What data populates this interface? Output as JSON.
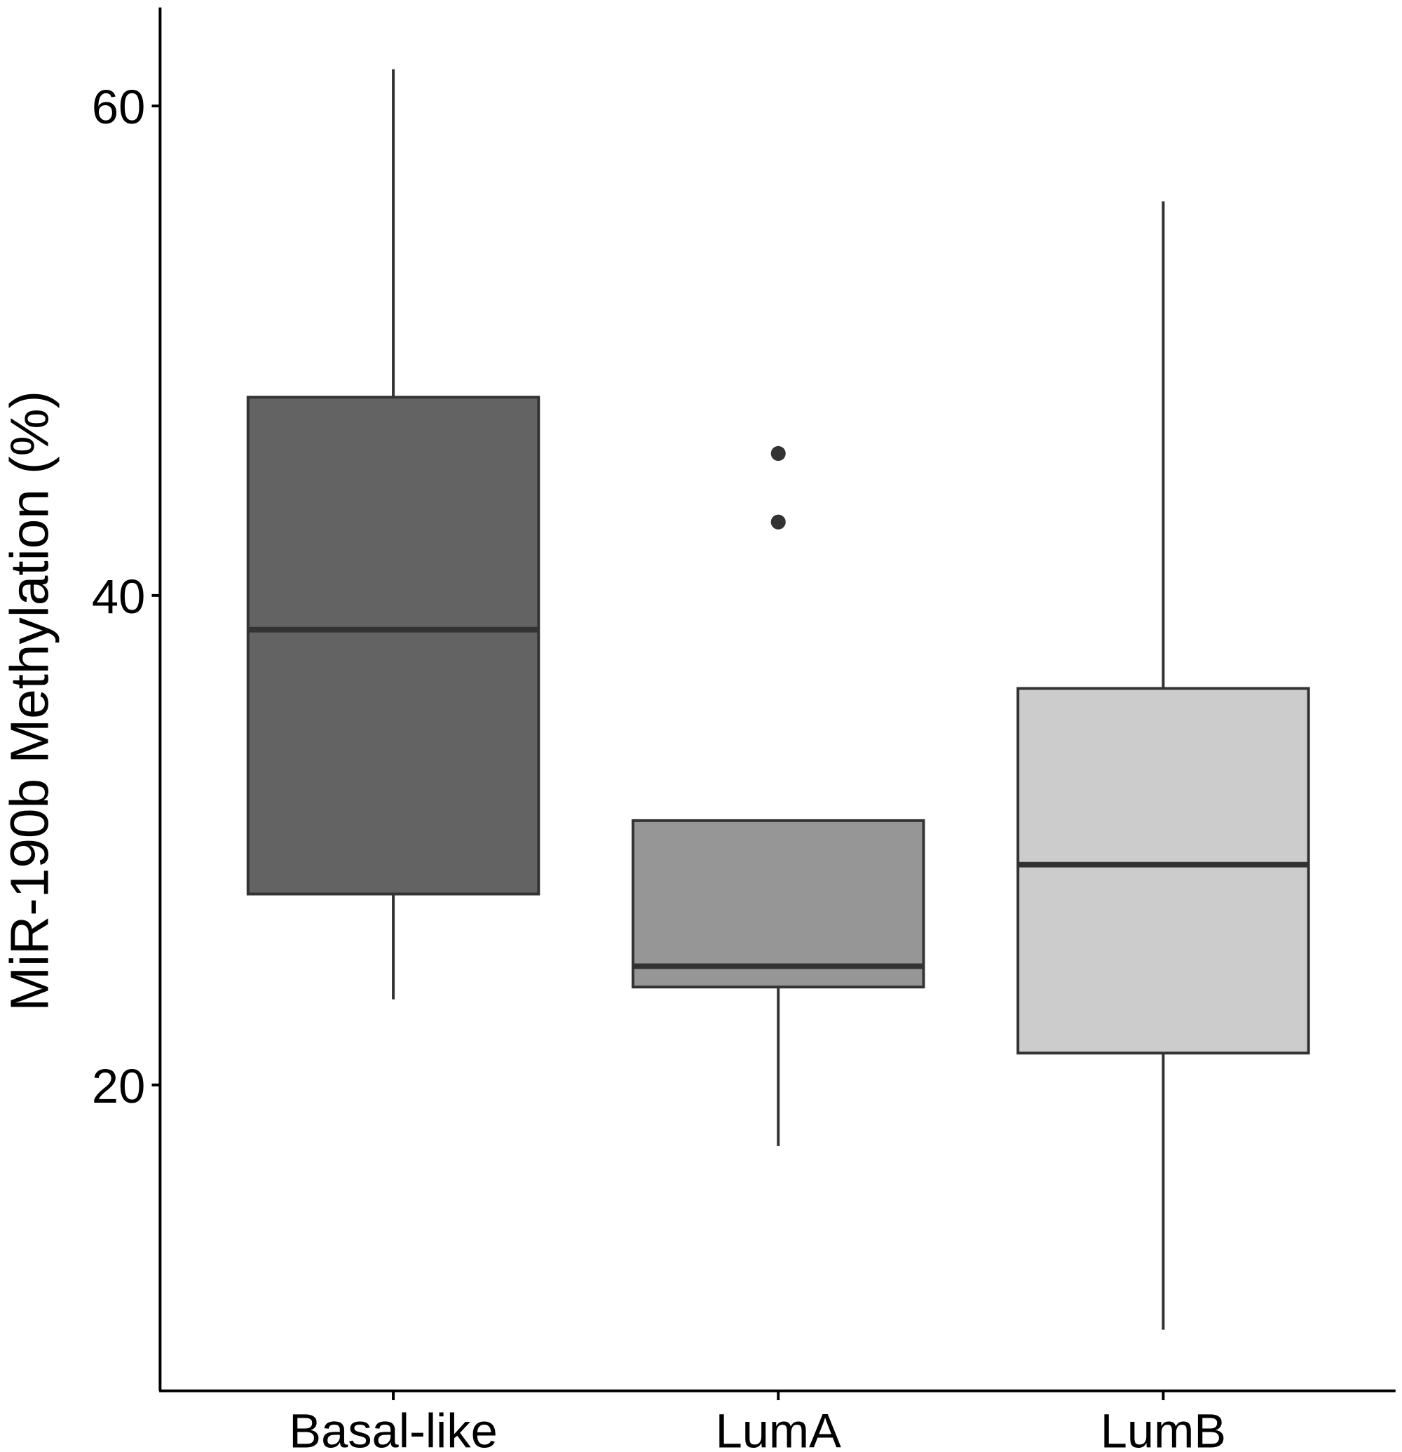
{
  "chart_data": {
    "type": "box",
    "title": "",
    "xlabel": "",
    "ylabel": "MiR-190b Methylation (%)",
    "ylim": [
      7.5,
      64
    ],
    "yticks": [
      20,
      40,
      60
    ],
    "grid": false,
    "legend": "none",
    "categories": [
      "Basal-like",
      "LumA",
      "LumB"
    ],
    "boxes": [
      {
        "category": "Basal-like",
        "whisker_low": 23.5,
        "q1": 27.8,
        "median": 38.6,
        "q3": 48.1,
        "whisker_high": 61.5,
        "outliers": [],
        "color": "#636363"
      },
      {
        "category": "LumA",
        "whisker_low": 17.5,
        "q1": 24.0,
        "median": 24.85,
        "q3": 30.8,
        "whisker_high": 30.8,
        "outliers": [
          45.8,
          43.0
        ],
        "color": "#969696"
      },
      {
        "category": "LumB",
        "whisker_low": 10.0,
        "q1": 21.3,
        "median": 29.0,
        "q3": 36.2,
        "whisker_high": 56.1,
        "outliers": [],
        "color": "#cccccc"
      }
    ]
  }
}
